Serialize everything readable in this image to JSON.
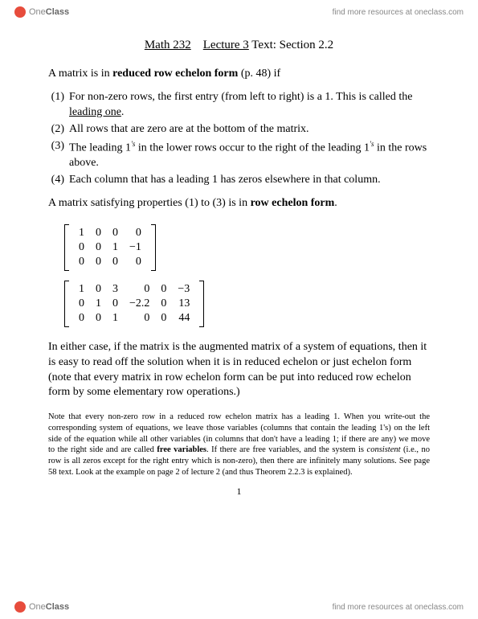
{
  "header": {
    "brand_one": "One",
    "brand_class": "Class",
    "link": "find more resources at oneclass.com"
  },
  "title": {
    "course": "Math 232",
    "lecture": "Lecture 3",
    "rest": " Text: Section 2.2"
  },
  "intro": {
    "pre": "A matrix is in ",
    "bold": "reduced row echelon form",
    "post": " (p. 48) if"
  },
  "items": [
    {
      "n": "(1)",
      "a": "For non-zero rows, the first entry (from left to right) is a 1. This is called the ",
      "u": "leading one",
      "b": "."
    },
    {
      "n": "(2)",
      "a": "All rows that are zero are at the bottom of the matrix."
    },
    {
      "n": "(3)",
      "a": "The leading 1",
      "sup": "'s",
      "b": " in the lower rows occur to the right of the leading 1",
      "sup2": "'s",
      "c": " in the rows above."
    },
    {
      "n": "(4)",
      "a": "Each column that has a leading 1 has zeros elsewhere in that column."
    }
  ],
  "mid": {
    "pre": "A matrix satisfying properties (1) to (3) is in ",
    "bold": "row echelon form",
    "post": "."
  },
  "matrix1": [
    [
      "1",
      "0",
      "0",
      "0"
    ],
    [
      "0",
      "0",
      "1",
      "−1"
    ],
    [
      "0",
      "0",
      "0",
      "0"
    ]
  ],
  "matrix2": [
    [
      "1",
      "0",
      "3",
      "0",
      "0",
      "−3"
    ],
    [
      "0",
      "1",
      "0",
      "−2.2",
      "0",
      "13"
    ],
    [
      "0",
      "0",
      "1",
      "0",
      "0",
      "44"
    ]
  ],
  "para2": "In either case, if the matrix is the augmented matrix of a system of equations, then it is easy to read off the solution when it is in reduced echelon or just echelon form (note that every matrix in row echelon form can be put into reduced row echelon form by some elementary row operations.)",
  "note": {
    "a": "Note that every non-zero row in a reduced row echelon matrix has a leading 1. When you write-out the corresponding system of equations, we leave those variables (columns that contain the leading 1's) on the left side of the equation while all other variables (in columns that don't have a leading 1; if there are any) we move to the right side and are called ",
    "b_bold": "free variables",
    "c": ". If there are free variables, and the system is ",
    "d_it": "consistent",
    "e": " (i.e., no row is all zeros except for the right entry which is non-zero), then there are infinitely many solutions. See page 58 text. Look at the example on page 2 of lecture 2 (and thus Theorem 2.2.3 is explained)."
  },
  "pagenum": "1"
}
